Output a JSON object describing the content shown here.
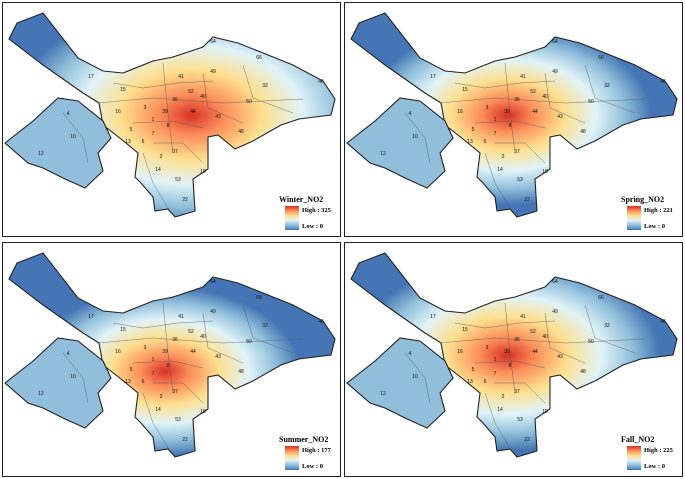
{
  "panels": [
    {
      "title": "Winter_NO2",
      "high": "High : 325",
      "low": "Low : 0",
      "hotspot_intensity": 1.0
    },
    {
      "title": "Spring_NO2",
      "high": "High : 221",
      "low": "Low : 0",
      "hotspot_intensity": 0.8
    },
    {
      "title": "Summer_NO2",
      "high": "High : 177",
      "low": "Low : 0",
      "hotspot_intensity": 0.75
    },
    {
      "title": "Fall_NO2",
      "high": "High : 225",
      "low": "Low : 0",
      "hotspot_intensity": 0.85
    }
  ],
  "zone_labels": [
    "17",
    "15",
    "16",
    "12",
    "10",
    "4",
    "5",
    "6",
    "7",
    "8",
    "13",
    "14",
    "2",
    "37",
    "53",
    "18",
    "22",
    "44",
    "43",
    "46",
    "48",
    "50",
    "32",
    "64",
    "66",
    "49",
    "41",
    "52",
    "39",
    "40",
    "36",
    "1",
    "3"
  ],
  "colors": {
    "high": "#d73027",
    "mid_high": "#fc8d59",
    "mid": "#fee090",
    "mid_low": "#e0f3f8",
    "low_mid": "#91bfdb",
    "low": "#4575b4",
    "outline": "#222222"
  }
}
